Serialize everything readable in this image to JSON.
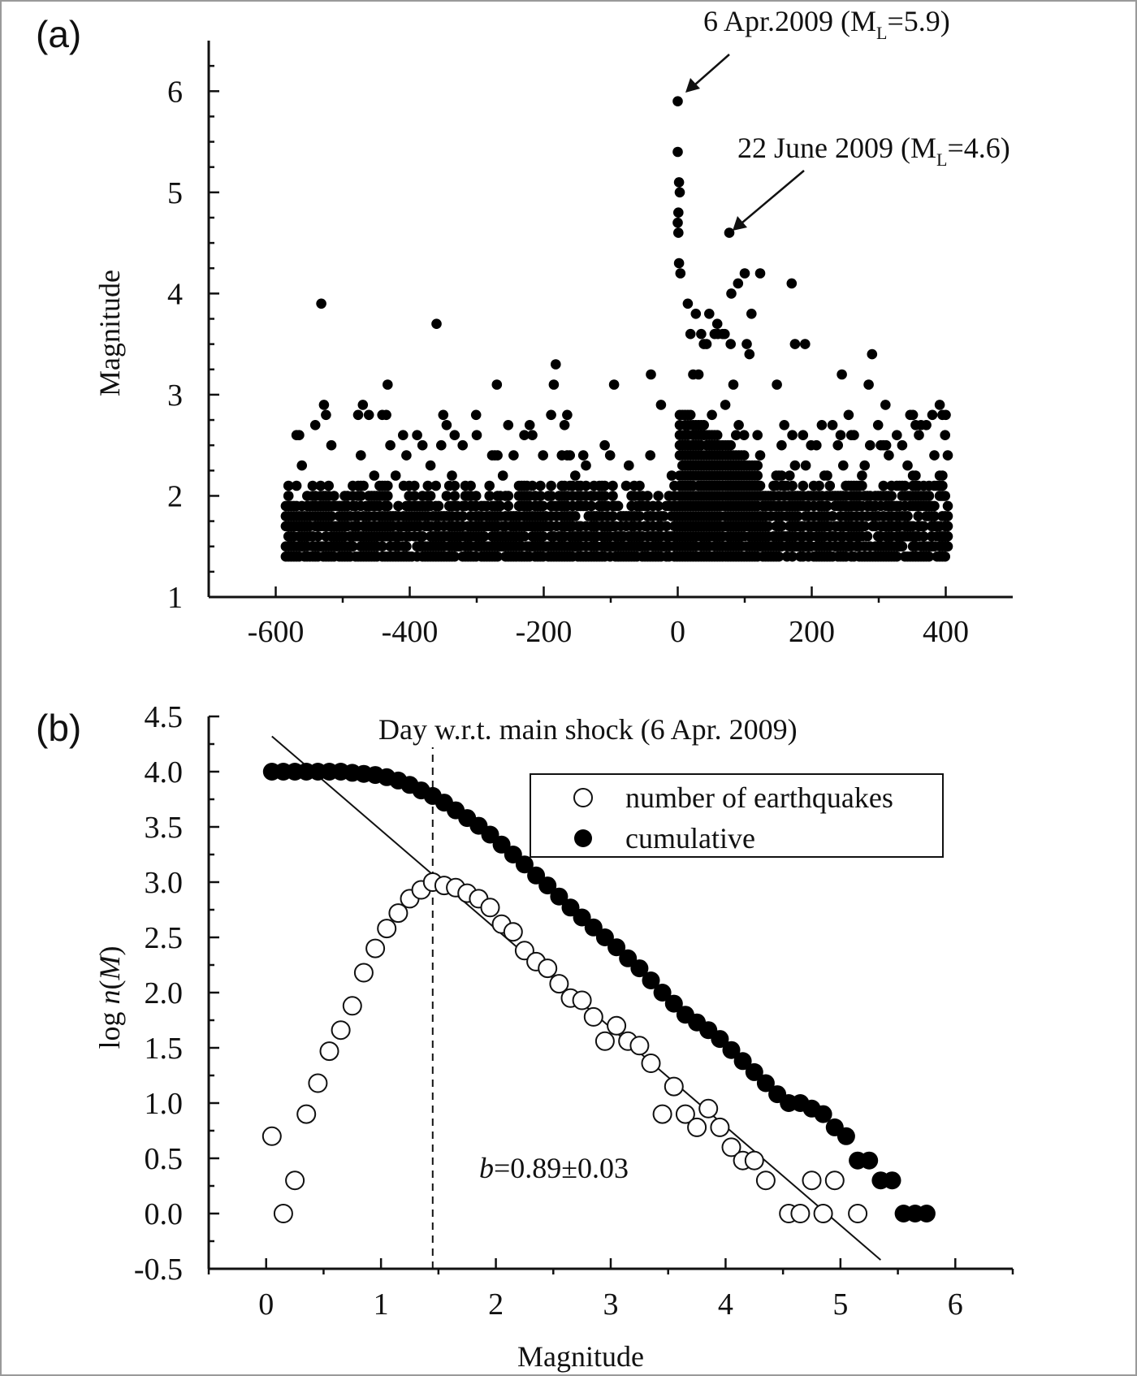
{
  "figure": {
    "border_color": "#9a9a9a",
    "ink_color": "#111111"
  },
  "chart_data": [
    {
      "panel": "(a)",
      "type": "scatter",
      "title": "",
      "xlabel": "",
      "ylabel": "Magnitude",
      "xlim": [
        -700,
        500
      ],
      "ylim": [
        1,
        6.5
      ],
      "xticks": [
        -600,
        -400,
        -200,
        0,
        200,
        400
      ],
      "xtick_labels": [
        "-600",
        "-400",
        "-200",
        "0",
        "200",
        "400"
      ],
      "yticks": [
        1,
        2,
        3,
        4,
        5,
        6
      ],
      "ytick_labels": [
        "1",
        "2",
        "3",
        "4",
        "5",
        "6"
      ],
      "x_range_of_events": [
        -585,
        405
      ],
      "magnitude_floor": 1.4,
      "highlighted_points": [
        {
          "x": 0,
          "y": 5.9,
          "label_prefix": "6 Apr.2009 (M",
          "label_sub": "L",
          "label_suffix": "=5.9)"
        },
        {
          "x": 77,
          "y": 4.6,
          "label_prefix": "22 June 2009 (M",
          "label_sub": "L",
          "label_suffix": "=4.6)"
        }
      ],
      "notable_points": [
        {
          "x": 0,
          "y": 5.4
        },
        {
          "x": 2,
          "y": 5.1
        },
        {
          "x": 3,
          "y": 5.0
        },
        {
          "x": 1,
          "y": 4.8
        },
        {
          "x": 0,
          "y": 4.7
        },
        {
          "x": 1,
          "y": 4.6
        },
        {
          "x": 2,
          "y": 4.3
        },
        {
          "x": 4,
          "y": 4.2
        },
        {
          "x": -532,
          "y": 3.9
        },
        {
          "x": -360,
          "y": 3.7
        },
        {
          "x": 80,
          "y": 4.0
        },
        {
          "x": 90,
          "y": 4.1
        },
        {
          "x": 100,
          "y": 4.2
        },
        {
          "x": 123,
          "y": 4.2
        },
        {
          "x": 170,
          "y": 4.1
        },
        {
          "x": 110,
          "y": 3.8
        },
        {
          "x": 60,
          "y": 3.6
        },
        {
          "x": 70,
          "y": 3.6
        },
        {
          "x": 175,
          "y": 3.5
        },
        {
          "x": 190,
          "y": 3.5
        },
        {
          "x": 290,
          "y": 3.4
        },
        {
          "x": -182,
          "y": 3.3
        },
        {
          "x": 245,
          "y": 3.2
        },
        {
          "x": -40,
          "y": 3.2
        },
        {
          "x": -433,
          "y": 3.1
        },
        {
          "x": -270,
          "y": 3.1
        },
        {
          "x": -185,
          "y": 3.1
        },
        {
          "x": -95,
          "y": 3.1
        },
        {
          "x": 285,
          "y": 3.1
        },
        {
          "x": 148,
          "y": 3.1
        },
        {
          "x": -528,
          "y": 2.9
        },
        {
          "x": -25,
          "y": 2.9
        },
        {
          "x": 310,
          "y": 2.9
        },
        {
          "x": -525,
          "y": 2.8
        },
        {
          "x": -435,
          "y": 2.8
        },
        {
          "x": -350,
          "y": 2.8
        },
        {
          "x": -165,
          "y": 2.8
        },
        {
          "x": 380,
          "y": 2.8
        },
        {
          "x": 400,
          "y": 2.8
        },
        {
          "x": -470,
          "y": 2.9
        },
        {
          "x": -300,
          "y": 2.6
        },
        {
          "x": -410,
          "y": 2.6
        },
        {
          "x": -565,
          "y": 2.6
        },
        {
          "x": 360,
          "y": 2.6
        }
      ],
      "point_color": "#000000"
    },
    {
      "panel": "(b)",
      "type": "scatter",
      "title": "",
      "xlabel": "Magnitude",
      "ylabel_prefix": "log ",
      "ylabel_italic": "n",
      "ylabel_open": "(",
      "ylabel_italic2": "M",
      "ylabel_close": ")",
      "top_caption": "Day w.r.t. main shock (6 Apr. 2009)",
      "xlim": [
        -0.5,
        6.5
      ],
      "ylim": [
        -0.5,
        4.5
      ],
      "xticks": [
        0,
        1,
        2,
        3,
        4,
        5,
        6
      ],
      "xtick_labels": [
        "0",
        "1",
        "2",
        "3",
        "4",
        "5",
        "6"
      ],
      "yticks": [
        -0.5,
        0.0,
        0.5,
        1.0,
        1.5,
        2.0,
        2.5,
        3.0,
        3.5,
        4.0,
        4.5
      ],
      "ytick_labels": [
        "-0.5",
        "0.0",
        "0.5",
        "1.0",
        "1.5",
        "2.0",
        "2.5",
        "3.0",
        "3.5",
        "4.0",
        "4.5"
      ],
      "legend_position": "top-right",
      "legend": [
        {
          "label": "number of earthquakes",
          "marker": "open-circle"
        },
        {
          "label": "cumulative",
          "marker": "filled-circle"
        }
      ],
      "b_value_prefix": "b",
      "b_value_text": "=0.89±0.03",
      "completeness_magnitude": 1.45,
      "fit_line": {
        "x": [
          0.05,
          5.35
        ],
        "y": [
          4.32,
          -0.42
        ]
      },
      "series": [
        {
          "name": "number of earthquakes",
          "marker": "open-circle",
          "x": [
            0.05,
            0.15,
            0.25,
            0.35,
            0.45,
            0.55,
            0.65,
            0.75,
            0.85,
            0.95,
            1.05,
            1.15,
            1.25,
            1.35,
            1.45,
            1.55,
            1.65,
            1.75,
            1.85,
            1.95,
            2.05,
            2.15,
            2.25,
            2.35,
            2.45,
            2.55,
            2.65,
            2.75,
            2.85,
            2.95,
            3.05,
            3.15,
            3.25,
            3.35,
            3.45,
            3.55,
            3.65,
            3.75,
            3.85,
            3.95,
            4.05,
            4.15,
            4.25,
            4.35,
            4.55,
            4.65,
            4.75,
            4.85,
            4.95,
            5.15
          ],
          "y": [
            0.7,
            0.0,
            0.3,
            0.9,
            1.18,
            1.47,
            1.66,
            1.88,
            2.18,
            2.4,
            2.58,
            2.72,
            2.85,
            2.93,
            3.0,
            2.97,
            2.95,
            2.9,
            2.85,
            2.77,
            2.62,
            2.55,
            2.38,
            2.28,
            2.22,
            2.08,
            1.95,
            1.93,
            1.78,
            1.56,
            1.7,
            1.56,
            1.52,
            1.36,
            0.9,
            1.15,
            0.9,
            0.78,
            0.95,
            0.78,
            0.6,
            0.48,
            0.48,
            0.3,
            0.0,
            0.0,
            0.3,
            0.0,
            0.3,
            0.0
          ]
        },
        {
          "name": "cumulative",
          "marker": "filled-circle",
          "x": [
            0.05,
            0.15,
            0.25,
            0.35,
            0.45,
            0.55,
            0.65,
            0.75,
            0.85,
            0.95,
            1.05,
            1.15,
            1.25,
            1.35,
            1.45,
            1.55,
            1.65,
            1.75,
            1.85,
            1.95,
            2.05,
            2.15,
            2.25,
            2.35,
            2.45,
            2.55,
            2.65,
            2.75,
            2.85,
            2.95,
            3.05,
            3.15,
            3.25,
            3.35,
            3.45,
            3.55,
            3.65,
            3.75,
            3.85,
            3.95,
            4.05,
            4.15,
            4.25,
            4.35,
            4.45,
            4.55,
            4.65,
            4.75,
            4.85,
            4.95,
            5.05,
            5.15,
            5.25,
            5.35,
            5.45,
            5.55,
            5.65,
            5.75
          ],
          "y": [
            4.0,
            4.0,
            4.0,
            4.0,
            4.0,
            4.0,
            4.0,
            3.99,
            3.98,
            3.97,
            3.95,
            3.92,
            3.88,
            3.83,
            3.78,
            3.72,
            3.65,
            3.58,
            3.51,
            3.43,
            3.34,
            3.25,
            3.16,
            3.06,
            2.97,
            2.87,
            2.77,
            2.68,
            2.59,
            2.5,
            2.41,
            2.31,
            2.22,
            2.11,
            2.0,
            1.9,
            1.8,
            1.73,
            1.66,
            1.58,
            1.48,
            1.38,
            1.28,
            1.18,
            1.08,
            1.0,
            1.0,
            0.95,
            0.9,
            0.78,
            0.7,
            0.48,
            0.48,
            0.3,
            0.3,
            0.0,
            0.0,
            0.0
          ]
        }
      ]
    }
  ]
}
